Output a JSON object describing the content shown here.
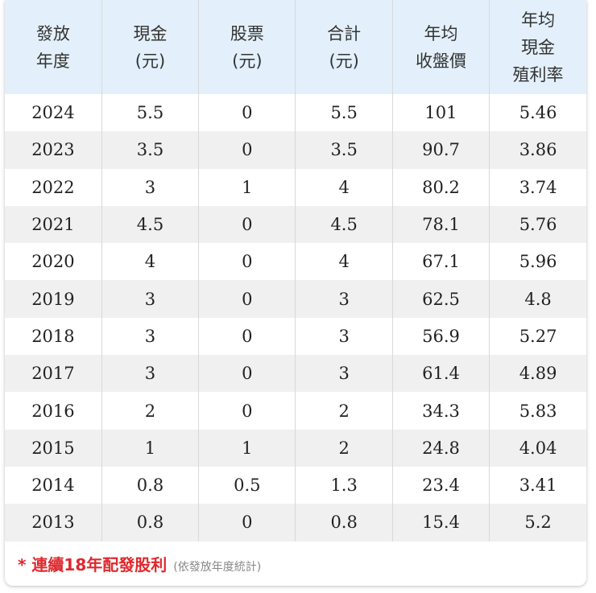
{
  "table": {
    "header": [
      [
        "發放",
        "年度"
      ],
      [
        "現金",
        "(元)"
      ],
      [
        "股票",
        "(元)"
      ],
      [
        "合計",
        "(元)"
      ],
      [
        "年均",
        "收盤價"
      ],
      [
        "年均",
        "現金",
        "殖利率"
      ]
    ],
    "rows": [
      [
        2024,
        5.5,
        0,
        5.5,
        101,
        5.46
      ],
      [
        2023,
        3.5,
        0,
        3.5,
        90.7,
        3.86
      ],
      [
        2022,
        3,
        1,
        4,
        80.2,
        3.74
      ],
      [
        2021,
        4.5,
        0,
        4.5,
        78.1,
        5.76
      ],
      [
        2020,
        4,
        0,
        4,
        67.1,
        5.96
      ],
      [
        2019,
        3,
        0,
        3,
        62.5,
        4.8
      ],
      [
        2018,
        3,
        0,
        3,
        56.9,
        5.27
      ],
      [
        2017,
        3,
        0,
        3,
        61.4,
        4.89
      ],
      [
        2016,
        2,
        0,
        2,
        34.3,
        5.83
      ],
      [
        2015,
        1,
        1,
        2,
        24.8,
        4.04
      ],
      [
        2014,
        0.8,
        0.5,
        1.3,
        23.4,
        3.41
      ],
      [
        2013,
        0.8,
        0,
        0.8,
        15.4,
        5.2
      ]
    ]
  },
  "footer": {
    "note": "* 連續18年配發股利",
    "sub": "(依發放年度統計)"
  }
}
